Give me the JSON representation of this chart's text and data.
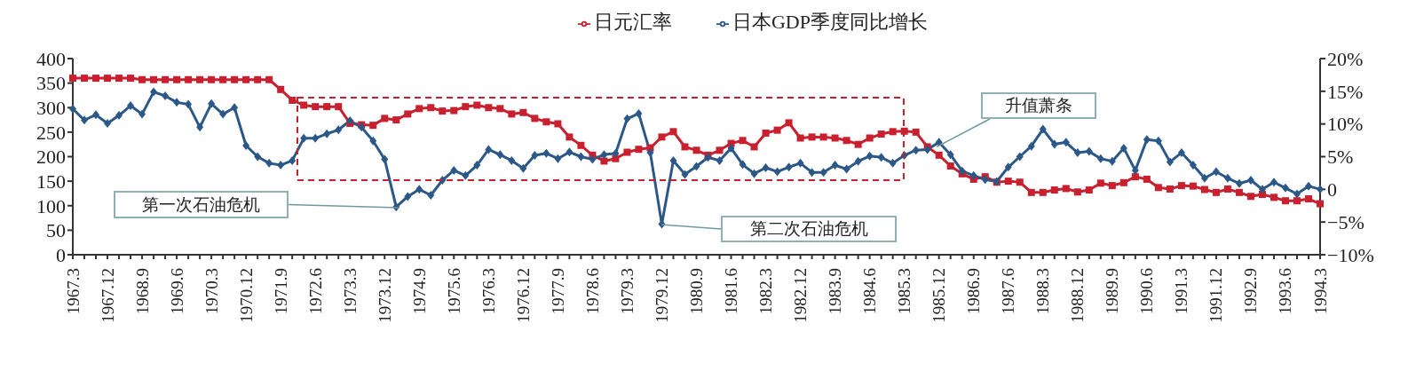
{
  "chart_data": {
    "type": "line",
    "categories": [
      "1967.3",
      null,
      null,
      "1967.12",
      null,
      null,
      "1968.9",
      null,
      null,
      "1969.6",
      null,
      null,
      "1970.3",
      null,
      null,
      "1970.12",
      null,
      null,
      "1971.9",
      null,
      null,
      "1972.6",
      null,
      null,
      "1973.3",
      null,
      null,
      "1973.12",
      null,
      null,
      "1974.9",
      null,
      null,
      "1975.6",
      null,
      null,
      "1976.3",
      null,
      null,
      "1976.12",
      null,
      null,
      "1977.9",
      null,
      null,
      "1978.6",
      null,
      null,
      "1979.3",
      null,
      null,
      "1979.12",
      null,
      null,
      "1980.9",
      null,
      null,
      "1981.6",
      null,
      null,
      "1982.3",
      null,
      null,
      "1982.12",
      null,
      null,
      "1983.9",
      null,
      null,
      "1984.6",
      null,
      null,
      "1985.3",
      null,
      null,
      "1985.12",
      null,
      null,
      "1986.9",
      null,
      null,
      "1987.6",
      null,
      null,
      "1988.3",
      null,
      null,
      "1988.12",
      null,
      null,
      "1989.9",
      null,
      null,
      "1990.6",
      null,
      null,
      "1991.3",
      null,
      null,
      "1991.12",
      null,
      null,
      "1992.9",
      null,
      null,
      "1993.6",
      null,
      null,
      "1994.3"
    ],
    "series": [
      {
        "name": "日元汇率",
        "color": "#c8202f",
        "marker": "square",
        "values": [
          360,
          360,
          360,
          360,
          360,
          360,
          357,
          357,
          357,
          357,
          357,
          357,
          357,
          357,
          357,
          357,
          357,
          357,
          337,
          315,
          305,
          302,
          302,
          302,
          268,
          265,
          264,
          278,
          275,
          287,
          298,
          300,
          293,
          294,
          302,
          305,
          300,
          298,
          287,
          290,
          278,
          271,
          267,
          240,
          223,
          203,
          191,
          196,
          209,
          215,
          218,
          240,
          251,
          220,
          213,
          203,
          213,
          227,
          233,
          220,
          248,
          254,
          269,
          238,
          240,
          240,
          238,
          233,
          225,
          238,
          246,
          251,
          252,
          250,
          220,
          203,
          181,
          165,
          154,
          159,
          148,
          150,
          148,
          127,
          127,
          132,
          135,
          128,
          132,
          146,
          141,
          147,
          159,
          154,
          137,
          134,
          141,
          140,
          133,
          127,
          134,
          127,
          119,
          123,
          117,
          110,
          110,
          114,
          104
        ]
      },
      {
        "name": "日本GDP季度同比增长",
        "color": "#2b5887",
        "marker": "diamond",
        "axis": "y2",
        "values": [
          12.3,
          10.6,
          11.4,
          10.1,
          11.3,
          12.8,
          11.5,
          14.9,
          14.3,
          13.3,
          13.0,
          9.5,
          13.1,
          11.5,
          12.5,
          6.7,
          5.0,
          4.0,
          3.7,
          4.4,
          7.8,
          7.8,
          8.5,
          9.1,
          10.5,
          9.5,
          7.4,
          4.6,
          -2.7,
          -1.1,
          0,
          -0.9,
          1.4,
          2.9,
          2.1,
          3.7,
          6.1,
          5.3,
          4.4,
          3.2,
          5.2,
          5.5,
          4.7,
          5.7,
          5.0,
          4.6,
          5.3,
          5.5,
          10.8,
          11.6,
          5.6,
          -5.3,
          4.4,
          2.3,
          3.5,
          4.9,
          4.4,
          6.3,
          3.8,
          2.4,
          3.3,
          2.7,
          3.4,
          4.0,
          2.6,
          2.6,
          3.7,
          3.1,
          4.3,
          5.1,
          4.9,
          4.0,
          5.2,
          6.0,
          6.1,
          7.2,
          5.3,
          2.8,
          2.1,
          1.5,
          1.2,
          3.4,
          5.0,
          6.6,
          9.2,
          6.9,
          7.2,
          5.6,
          5.8,
          4.7,
          4.3,
          6.3,
          2.9,
          7.6,
          7.4,
          4.2,
          5.6,
          3.7,
          1.7,
          2.7,
          1.7,
          0.9,
          1.4,
          0,
          1.1,
          0.2,
          -0.7,
          0.5,
          0
        ]
      }
    ],
    "ylim": [
      0,
      400
    ],
    "yticks": [
      0,
      50,
      100,
      150,
      200,
      250,
      300,
      350,
      400
    ],
    "y2lim": [
      -10,
      20
    ],
    "y2ticks": [
      {
        "value": -10,
        "label": "−10%"
      },
      {
        "value": -5,
        "label": "−5%"
      },
      0,
      {
        "value": 5,
        "label": "5%"
      },
      {
        "value": 10,
        "label": "10%"
      },
      {
        "value": 15,
        "label": "15%"
      },
      {
        "value": 20,
        "label": "20%"
      }
    ],
    "legend": "top",
    "line_style": "solid",
    "annotations": [
      "第一次石油危机",
      "第二次石油危机",
      {
        "text": "升值萧条",
        "x": "1985.12",
        "y": 222
      }
    ]
  }
}
